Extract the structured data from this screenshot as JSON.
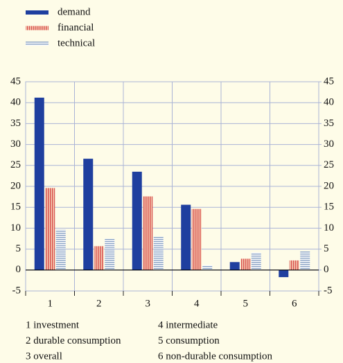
{
  "chart_data": {
    "type": "bar",
    "categories": [
      "1",
      "2",
      "3",
      "4",
      "5",
      "6"
    ],
    "series": [
      {
        "name": "demand",
        "color": "#1f3f9f",
        "hatch": null,
        "values": [
          41.2,
          26.6,
          23.5,
          15.6,
          1.9,
          -1.7
        ]
      },
      {
        "name": "financial",
        "color": "#d9534f",
        "hatch": "vertical",
        "values": [
          19.6,
          5.7,
          17.6,
          14.6,
          2.7,
          2.3
        ]
      },
      {
        "name": "technical",
        "color": "#8ea6c6",
        "hatch": "horizontal",
        "values": [
          9.7,
          7.5,
          8.0,
          1.2,
          4.2,
          4.5
        ]
      }
    ],
    "ylim": [
      -5,
      45
    ],
    "yticks": [
      -5,
      0,
      5,
      10,
      15,
      20,
      25,
      30,
      35,
      40,
      45
    ],
    "y2lim": [
      -5,
      45
    ],
    "y2ticks": [
      -5,
      0,
      5,
      10,
      15,
      20,
      25,
      30,
      35,
      40,
      45
    ],
    "grid": true,
    "legend": "top-left",
    "notes": [
      "1 investment",
      "2 durable consumption",
      "3 overall",
      "4 intermediate",
      "5 consumption",
      "6 non-durable consumption"
    ]
  }
}
